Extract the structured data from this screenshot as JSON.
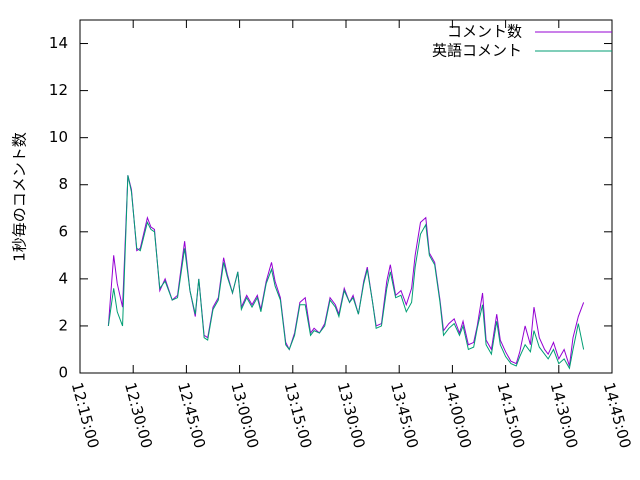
{
  "chart_data": {
    "type": "line",
    "ylabel": "1秒毎のコメント数",
    "x": [
      "12:23:00",
      "12:24:30",
      "12:25:30",
      "12:27:00",
      "12:28:30",
      "12:29:30",
      "12:31:00",
      "12:32:00",
      "12:34:00",
      "12:35:00",
      "12:36:00",
      "12:37:30",
      "12:39:00",
      "12:41:00",
      "12:42:30",
      "12:44:30",
      "12:46:00",
      "12:47:30",
      "12:48:30",
      "12:50:00",
      "12:51:00",
      "12:52:30",
      "12:54:00",
      "12:55:30",
      "12:56:30",
      "12:58:00",
      "12:59:30",
      "13:00:30",
      "13:02:00",
      "13:03:30",
      "13:05:00",
      "13:06:00",
      "13:07:30",
      "13:09:00",
      "13:10:00",
      "13:11:30",
      "13:13:00",
      "13:14:00",
      "13:15:30",
      "13:17:00",
      "13:18:30",
      "13:20:00",
      "13:21:00",
      "13:22:30",
      "13:24:00",
      "13:25:30",
      "13:27:00",
      "13:28:00",
      "13:29:30",
      "13:31:00",
      "13:32:00",
      "13:33:30",
      "13:35:00",
      "13:36:00",
      "13:37:30",
      "13:38:30",
      "13:40:00",
      "13:41:30",
      "13:42:30",
      "13:44:00",
      "13:45:30",
      "13:47:00",
      "13:48:30",
      "13:49:30",
      "13:51:00",
      "13:52:30",
      "13:53:30",
      "13:55:00",
      "13:56:30",
      "13:57:30",
      "13:59:00",
      "14:00:30",
      "14:02:00",
      "14:03:00",
      "14:04:30",
      "14:06:00",
      "14:07:00",
      "14:08:30",
      "14:09:30",
      "14:11:00",
      "14:12:30",
      "14:13:30",
      "14:15:00",
      "14:16:30",
      "14:18:00",
      "14:19:00",
      "14:20:30",
      "14:22:00",
      "14:23:00",
      "14:24:30",
      "14:26:00",
      "14:27:00",
      "14:28:30",
      "14:30:00",
      "14:31:30",
      "14:33:00",
      "14:34:00",
      "14:35:30",
      "14:37:00"
    ],
    "series": [
      {
        "name": "コメント数",
        "color": "#9400d3",
        "values": [
          2.0,
          5.0,
          3.8,
          2.8,
          8.4,
          7.8,
          5.2,
          5.3,
          6.6,
          6.2,
          6.1,
          3.5,
          4.0,
          3.1,
          3.3,
          5.6,
          3.5,
          2.4,
          4.0,
          1.6,
          1.5,
          2.8,
          3.2,
          4.9,
          4.2,
          3.4,
          4.3,
          2.8,
          3.3,
          2.9,
          3.3,
          2.7,
          3.9,
          4.7,
          3.9,
          3.2,
          1.3,
          1.0,
          1.7,
          3.0,
          3.2,
          1.7,
          1.9,
          1.7,
          2.1,
          3.2,
          2.9,
          2.5,
          3.6,
          3.0,
          3.3,
          2.5,
          3.9,
          4.5,
          3.0,
          2.0,
          2.1,
          3.9,
          4.6,
          3.3,
          3.5,
          2.9,
          3.6,
          5.0,
          6.4,
          6.6,
          5.1,
          4.7,
          3.1,
          1.8,
          2.1,
          2.3,
          1.7,
          2.2,
          1.2,
          1.3,
          2.0,
          3.4,
          1.4,
          1.0,
          2.5,
          1.4,
          0.9,
          0.5,
          0.4,
          0.9,
          2.0,
          1.2,
          2.8,
          1.5,
          1.0,
          0.8,
          1.3,
          0.6,
          1.0,
          0.3,
          1.5,
          2.4,
          3.0
        ]
      },
      {
        "name": "英語コメント",
        "color": "#009e73",
        "values": [
          2.0,
          3.6,
          2.6,
          2.0,
          8.4,
          7.7,
          5.3,
          5.2,
          6.4,
          6.1,
          6.0,
          3.6,
          3.9,
          3.1,
          3.2,
          5.3,
          3.5,
          2.5,
          4.0,
          1.5,
          1.4,
          2.7,
          3.1,
          4.7,
          4.1,
          3.4,
          4.3,
          2.7,
          3.2,
          2.8,
          3.2,
          2.6,
          3.8,
          4.4,
          3.7,
          3.1,
          1.2,
          1.0,
          1.6,
          2.9,
          2.9,
          1.6,
          1.8,
          1.7,
          2.0,
          3.1,
          2.8,
          2.4,
          3.5,
          3.0,
          3.2,
          2.5,
          3.8,
          4.4,
          3.0,
          1.9,
          2.0,
          3.6,
          4.3,
          3.2,
          3.3,
          2.6,
          3.0,
          4.5,
          5.9,
          6.3,
          5.0,
          4.6,
          3.0,
          1.6,
          1.9,
          2.1,
          1.6,
          2.0,
          1.0,
          1.1,
          1.9,
          2.9,
          1.2,
          0.8,
          2.2,
          1.2,
          0.7,
          0.4,
          0.3,
          0.7,
          1.2,
          0.9,
          1.8,
          1.1,
          0.8,
          0.6,
          1.0,
          0.4,
          0.6,
          0.2,
          1.0,
          2.1,
          1.0
        ]
      }
    ],
    "xlim": [
      "12:15:00",
      "14:45:00"
    ],
    "xticks": [
      "12:15:00",
      "12:30:00",
      "12:45:00",
      "13:00:00",
      "13:15:00",
      "13:30:00",
      "13:45:00",
      "14:00:00",
      "14:15:00",
      "14:30:00",
      "14:45:00"
    ],
    "ylim": [
      0,
      15
    ],
    "yticks": [
      0,
      2,
      4,
      6,
      8,
      10,
      12,
      14
    ],
    "legend": "upper right"
  }
}
